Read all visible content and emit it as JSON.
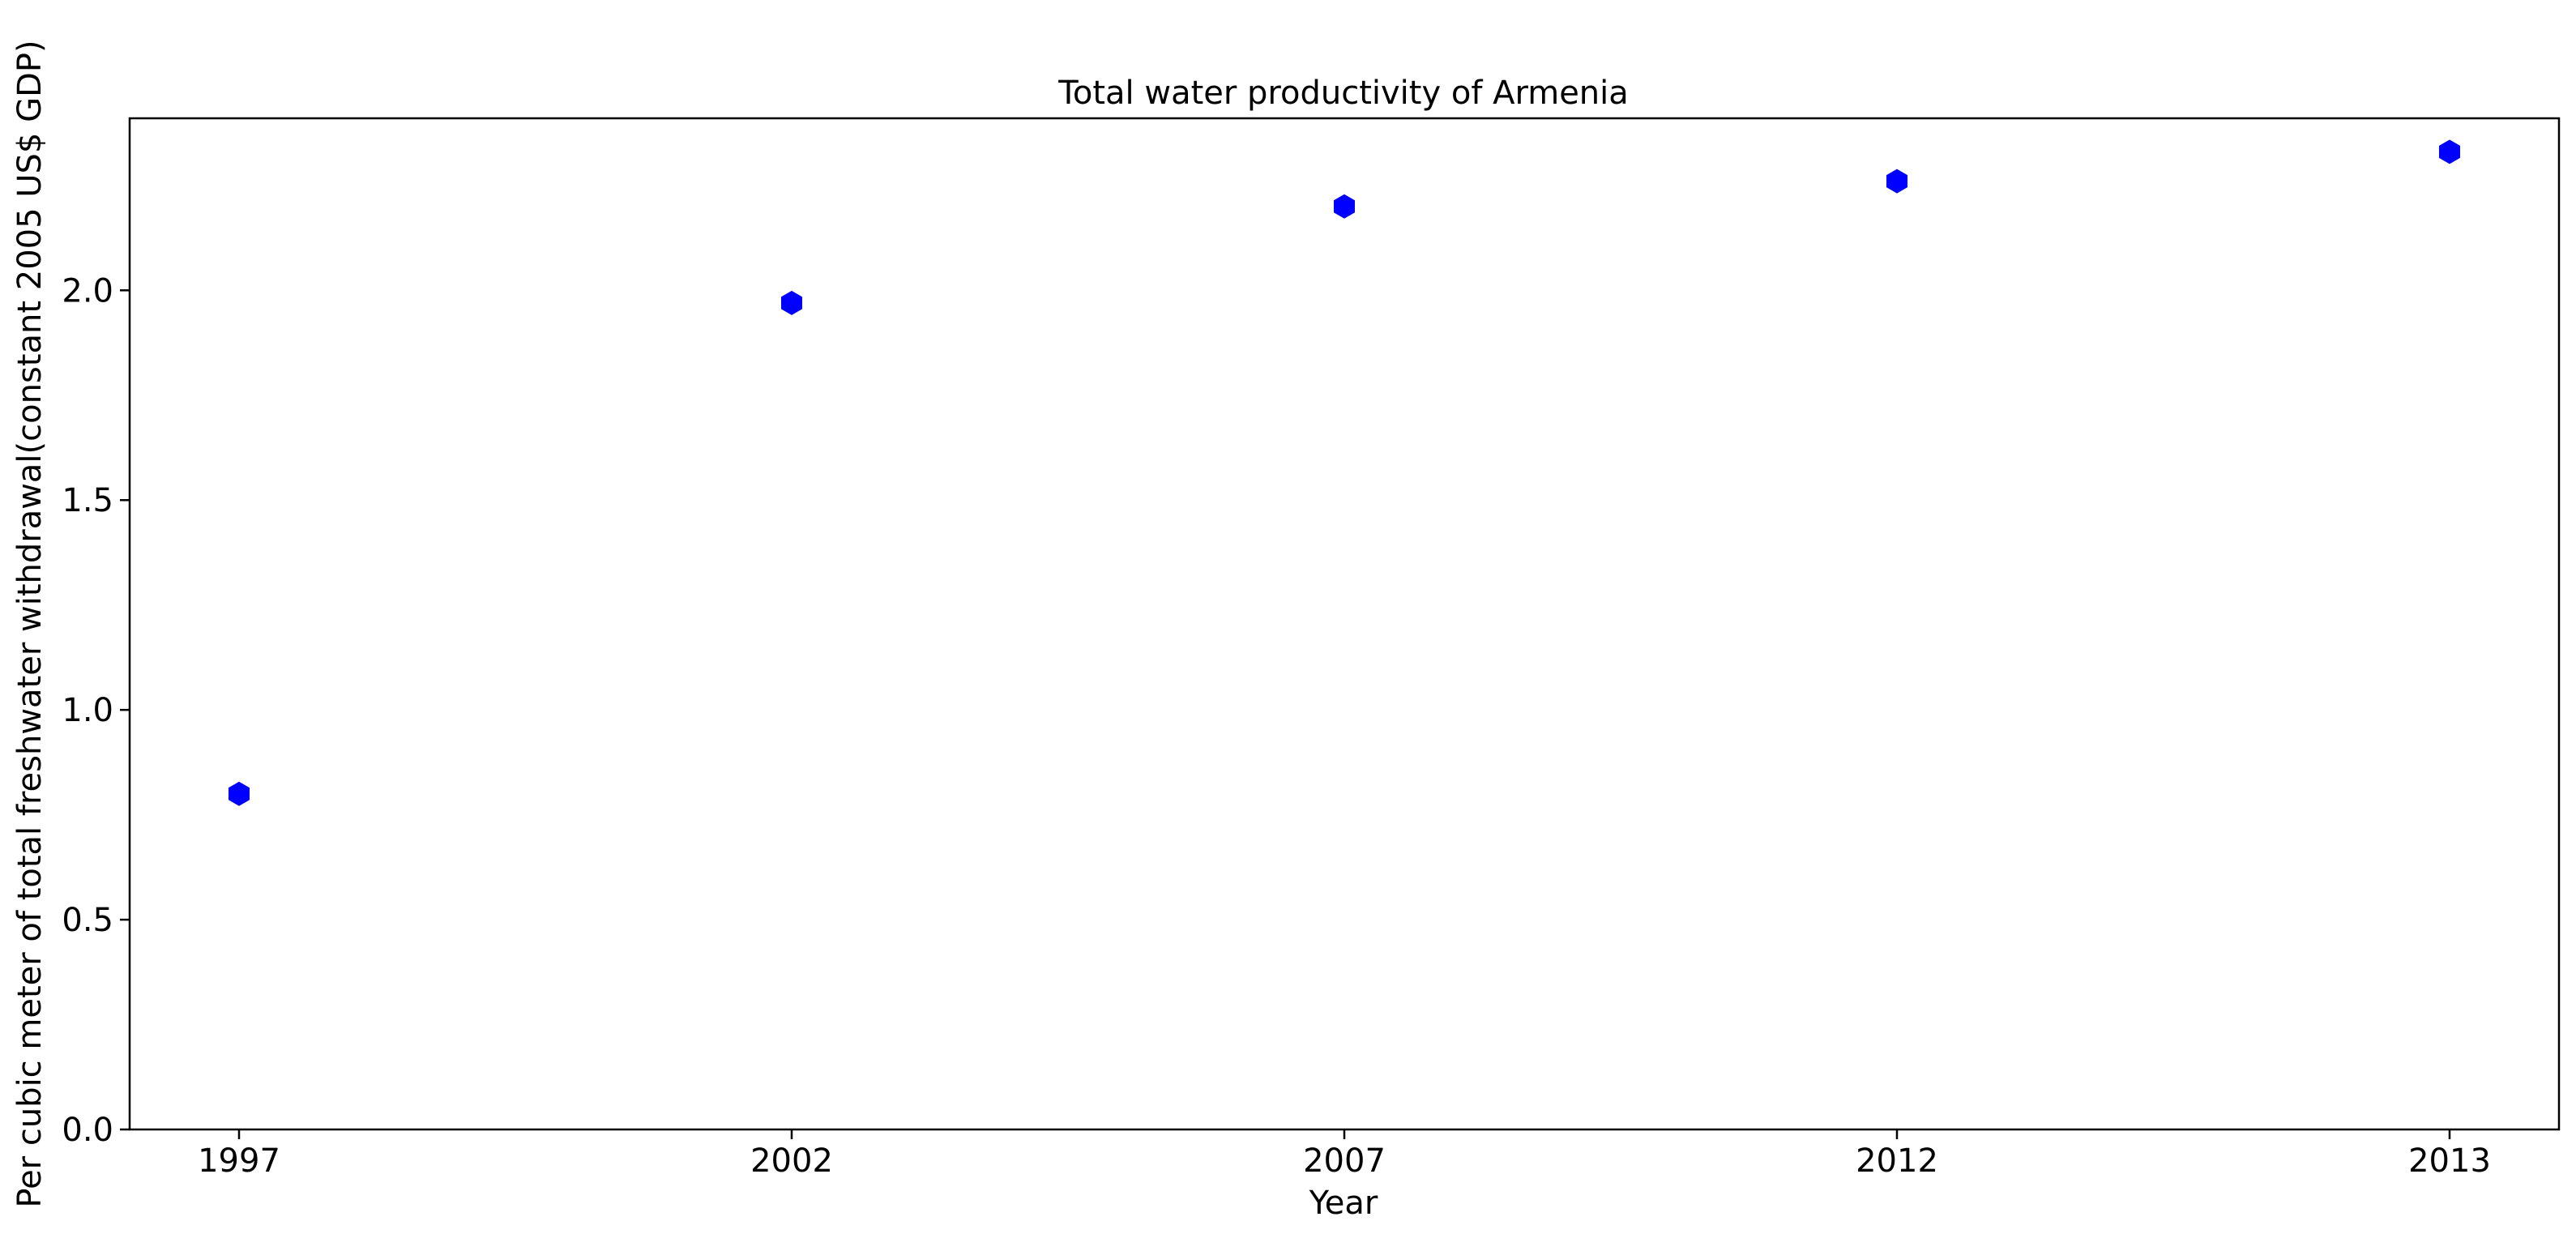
{
  "chart_data": {
    "type": "scatter",
    "title": "Total water productivity of Armenia",
    "xlabel": "Year",
    "ylabel": "Per cubic meter of total freshwater withdrawal(constant 2005 US$ GDP)",
    "categories": [
      "1997",
      "2002",
      "2007",
      "2012",
      "2013"
    ],
    "values": [
      0.8,
      1.97,
      2.2,
      2.26,
      2.33
    ],
    "ylim": [
      0,
      2.41
    ],
    "yticks": [
      "0.0",
      "0.5",
      "1.0",
      "1.5",
      "2.0"
    ],
    "marker": "hexagon",
    "marker_color": "#0000ff",
    "grid": false,
    "legend": false
  }
}
